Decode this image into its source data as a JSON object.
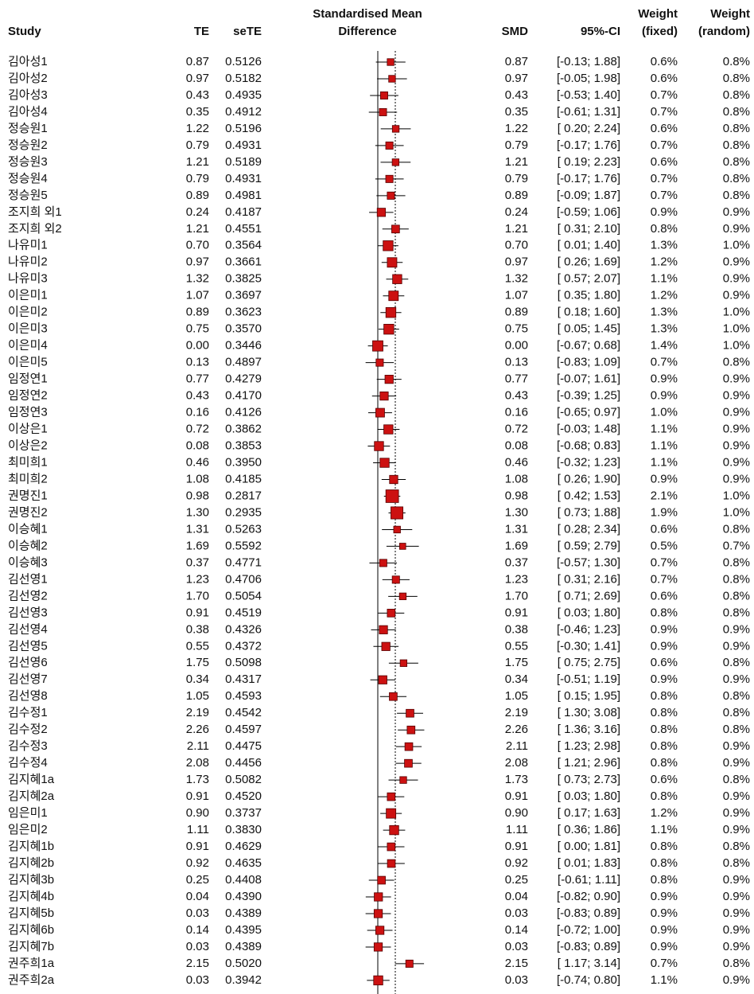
{
  "chart_data": {
    "type": "forest",
    "headers": {
      "study": "Study",
      "te": "TE",
      "sete": "seTE",
      "plot": [
        "Standardised Mean",
        "Difference"
      ],
      "smd": "SMD",
      "ci": "95%-CI",
      "weight_fixed": [
        "Weight",
        "(fixed)"
      ],
      "weight_random": [
        "Weight",
        "(random)"
      ]
    },
    "color": "#cc1111",
    "studies": [
      "김아성1",
      "김아성2",
      "김아성3",
      "김아성4",
      "정승원1",
      "정승원2",
      "정승원3",
      "정승원4",
      "정승원5",
      "조지희 외1",
      "조지희 외2",
      "나유미1",
      "나유미2",
      "나유미3",
      "이은미1",
      "이은미2",
      "이은미3",
      "이은미4",
      "이은미5",
      "임정연1",
      "임정연2",
      "임정연3",
      "이상은1",
      "이상은2",
      "최미희1",
      "최미희2",
      "권명진1",
      "권명진2",
      "이승혜1",
      "이승혜2",
      "이승혜3",
      "김선영1",
      "김선영2",
      "김선영3",
      "김선영4",
      "김선영5",
      "김선영6",
      "김선영7",
      "김선영8",
      "김수정1",
      "김수정2",
      "김수정3",
      "김수정4",
      "김지혜1a",
      "김지혜2a",
      "임은미1",
      "임은미2",
      "김지혜1b",
      "김지혜2b",
      "김지혜3b",
      "김지혜4b",
      "김지혜5b",
      "김지혜6b",
      "김지혜7b",
      "권주희1a",
      "권주희2a"
    ],
    "te": [
      0.87,
      0.97,
      0.43,
      0.35,
      1.22,
      0.79,
      1.21,
      0.79,
      0.89,
      0.24,
      1.21,
      0.7,
      0.97,
      1.32,
      1.07,
      0.89,
      0.75,
      0.0,
      0.13,
      0.77,
      0.43,
      0.16,
      0.72,
      0.08,
      0.46,
      1.08,
      0.98,
      1.3,
      1.31,
      1.69,
      0.37,
      1.23,
      1.7,
      0.91,
      0.38,
      0.55,
      1.75,
      0.34,
      1.05,
      2.19,
      2.26,
      2.11,
      2.08,
      1.73,
      0.91,
      0.9,
      1.11,
      0.91,
      0.92,
      0.25,
      0.04,
      0.03,
      0.14,
      0.03,
      2.15,
      0.03
    ],
    "te_labels": [
      "0.87",
      "0.97",
      "0.43",
      "0.35",
      "1.22",
      "0.79",
      "1.21",
      "0.79",
      "0.89",
      "0.24",
      "1.21",
      "0.70",
      "0.97",
      "1.32",
      "1.07",
      "0.89",
      "0.75",
      "0.00",
      "0.13",
      "0.77",
      "0.43",
      "0.16",
      "0.72",
      "0.08",
      "0.46",
      "1.08",
      "0.98",
      "1.30",
      "1.31",
      "1.69",
      "0.37",
      "1.23",
      "1.70",
      "0.91",
      "0.38",
      "0.55",
      "1.75",
      "0.34",
      "1.05",
      "2.19",
      "2.26",
      "2.11",
      "2.08",
      "1.73",
      "0.91",
      "0.90",
      "1.11",
      "0.91",
      "0.92",
      "0.25",
      "0.04",
      "0.03",
      "0.14",
      "0.03",
      "2.15",
      "0.03"
    ],
    "sete": [
      "0.5126",
      "0.5182",
      "0.4935",
      "0.4912",
      "0.5196",
      "0.4931",
      "0.5189",
      "0.4931",
      "0.4981",
      "0.4187",
      "0.4551",
      "0.3564",
      "0.3661",
      "0.3825",
      "0.3697",
      "0.3623",
      "0.3570",
      "0.3446",
      "0.4897",
      "0.4279",
      "0.4170",
      "0.4126",
      "0.3862",
      "0.3853",
      "0.3950",
      "0.4185",
      "0.2817",
      "0.2935",
      "0.5263",
      "0.5592",
      "0.4771",
      "0.4706",
      "0.5054",
      "0.4519",
      "0.4326",
      "0.4372",
      "0.5098",
      "0.4317",
      "0.4593",
      "0.4542",
      "0.4597",
      "0.4475",
      "0.4456",
      "0.5082",
      "0.4520",
      "0.3737",
      "0.3830",
      "0.4629",
      "0.4635",
      "0.4408",
      "0.4390",
      "0.4389",
      "0.4395",
      "0.4389",
      "0.5020",
      "0.3942"
    ],
    "ci_lower": [
      -0.13,
      -0.05,
      -0.53,
      -0.61,
      0.2,
      -0.17,
      0.19,
      -0.17,
      -0.09,
      -0.59,
      0.31,
      0.01,
      0.26,
      0.57,
      0.35,
      0.18,
      0.05,
      -0.67,
      -0.83,
      -0.07,
      -0.39,
      -0.65,
      -0.03,
      -0.68,
      -0.32,
      0.26,
      0.42,
      0.73,
      0.28,
      0.59,
      -0.57,
      0.31,
      0.71,
      0.03,
      -0.46,
      -0.3,
      0.75,
      -0.51,
      0.15,
      1.3,
      1.36,
      1.23,
      1.21,
      0.73,
      0.03,
      0.17,
      0.36,
      0.0,
      0.01,
      -0.61,
      -0.82,
      -0.83,
      -0.72,
      -0.83,
      1.17,
      -0.74
    ],
    "ci_upper": [
      1.88,
      1.98,
      1.4,
      1.31,
      2.24,
      1.76,
      2.23,
      1.76,
      1.87,
      1.06,
      2.1,
      1.4,
      1.69,
      2.07,
      1.8,
      1.6,
      1.45,
      0.68,
      1.09,
      1.61,
      1.25,
      0.97,
      1.48,
      0.83,
      1.23,
      1.9,
      1.53,
      1.88,
      2.34,
      2.79,
      1.3,
      2.16,
      2.69,
      1.8,
      1.23,
      1.41,
      2.75,
      1.19,
      1.95,
      3.08,
      3.16,
      2.98,
      2.96,
      2.73,
      1.8,
      1.63,
      1.86,
      1.81,
      1.83,
      1.11,
      0.9,
      0.89,
      1.0,
      0.89,
      3.14,
      0.8
    ],
    "ci_labels": [
      "[-0.13; 1.88]",
      "[-0.05; 1.98]",
      "[-0.53; 1.40]",
      "[-0.61; 1.31]",
      "[ 0.20; 2.24]",
      "[-0.17; 1.76]",
      "[ 0.19; 2.23]",
      "[-0.17; 1.76]",
      "[-0.09; 1.87]",
      "[-0.59; 1.06]",
      "[ 0.31; 2.10]",
      "[ 0.01; 1.40]",
      "[ 0.26; 1.69]",
      "[ 0.57; 2.07]",
      "[ 0.35; 1.80]",
      "[ 0.18; 1.60]",
      "[ 0.05; 1.45]",
      "[-0.67; 0.68]",
      "[-0.83; 1.09]",
      "[-0.07; 1.61]",
      "[-0.39; 1.25]",
      "[-0.65; 0.97]",
      "[-0.03; 1.48]",
      "[-0.68; 0.83]",
      "[-0.32; 1.23]",
      "[ 0.26; 1.90]",
      "[ 0.42; 1.53]",
      "[ 0.73; 1.88]",
      "[ 0.28; 2.34]",
      "[ 0.59; 2.79]",
      "[-0.57; 1.30]",
      "[ 0.31; 2.16]",
      "[ 0.71; 2.69]",
      "[ 0.03; 1.80]",
      "[-0.46; 1.23]",
      "[-0.30; 1.41]",
      "[ 0.75; 2.75]",
      "[-0.51; 1.19]",
      "[ 0.15; 1.95]",
      "[ 1.30; 3.08]",
      "[ 1.36; 3.16]",
      "[ 1.23; 2.98]",
      "[ 1.21; 2.96]",
      "[ 0.73; 2.73]",
      "[ 0.03; 1.80]",
      "[ 0.17; 1.63]",
      "[ 0.36; 1.86]",
      "[ 0.00; 1.81]",
      "[ 0.01; 1.83]",
      "[-0.61; 1.11]",
      "[-0.82; 0.90]",
      "[-0.83; 0.89]",
      "[-0.72; 1.00]",
      "[-0.83; 0.89]",
      "[ 1.17; 3.14]",
      "[-0.74; 0.80]"
    ],
    "weight_fixed": [
      0.6,
      0.6,
      0.7,
      0.7,
      0.6,
      0.7,
      0.6,
      0.7,
      0.7,
      0.9,
      0.8,
      1.3,
      1.2,
      1.1,
      1.2,
      1.3,
      1.3,
      1.4,
      0.7,
      0.9,
      0.9,
      1.0,
      1.1,
      1.1,
      1.1,
      0.9,
      2.1,
      1.9,
      0.6,
      0.5,
      0.7,
      0.7,
      0.6,
      0.8,
      0.9,
      0.9,
      0.6,
      0.9,
      0.8,
      0.8,
      0.8,
      0.8,
      0.8,
      0.6,
      0.8,
      1.2,
      1.1,
      0.8,
      0.8,
      0.8,
      0.9,
      0.9,
      0.9,
      0.9,
      0.7,
      1.1
    ],
    "weight_fixed_labels": [
      "0.6%",
      "0.6%",
      "0.7%",
      "0.7%",
      "0.6%",
      "0.7%",
      "0.6%",
      "0.7%",
      "0.7%",
      "0.9%",
      "0.8%",
      "1.3%",
      "1.2%",
      "1.1%",
      "1.2%",
      "1.3%",
      "1.3%",
      "1.4%",
      "0.7%",
      "0.9%",
      "0.9%",
      "1.0%",
      "1.1%",
      "1.1%",
      "1.1%",
      "0.9%",
      "2.1%",
      "1.9%",
      "0.6%",
      "0.5%",
      "0.7%",
      "0.7%",
      "0.6%",
      "0.8%",
      "0.9%",
      "0.9%",
      "0.6%",
      "0.9%",
      "0.8%",
      "0.8%",
      "0.8%",
      "0.8%",
      "0.8%",
      "0.6%",
      "0.8%",
      "1.2%",
      "1.1%",
      "0.8%",
      "0.8%",
      "0.8%",
      "0.9%",
      "0.9%",
      "0.9%",
      "0.9%",
      "0.7%",
      "1.1%"
    ],
    "weight_random_labels": [
      "0.8%",
      "0.8%",
      "0.8%",
      "0.8%",
      "0.8%",
      "0.8%",
      "0.8%",
      "0.8%",
      "0.8%",
      "0.9%",
      "0.9%",
      "1.0%",
      "0.9%",
      "0.9%",
      "0.9%",
      "1.0%",
      "1.0%",
      "1.0%",
      "0.8%",
      "0.9%",
      "0.9%",
      "0.9%",
      "0.9%",
      "0.9%",
      "0.9%",
      "0.9%",
      "1.0%",
      "1.0%",
      "0.8%",
      "0.7%",
      "0.8%",
      "0.8%",
      "0.8%",
      "0.8%",
      "0.9%",
      "0.9%",
      "0.8%",
      "0.9%",
      "0.8%",
      "0.8%",
      "0.8%",
      "0.9%",
      "0.9%",
      "0.8%",
      "0.9%",
      "0.9%",
      "0.9%",
      "0.8%",
      "0.8%",
      "0.9%",
      "0.9%",
      "0.9%",
      "0.9%",
      "0.9%",
      "0.8%",
      "0.9%"
    ]
  }
}
